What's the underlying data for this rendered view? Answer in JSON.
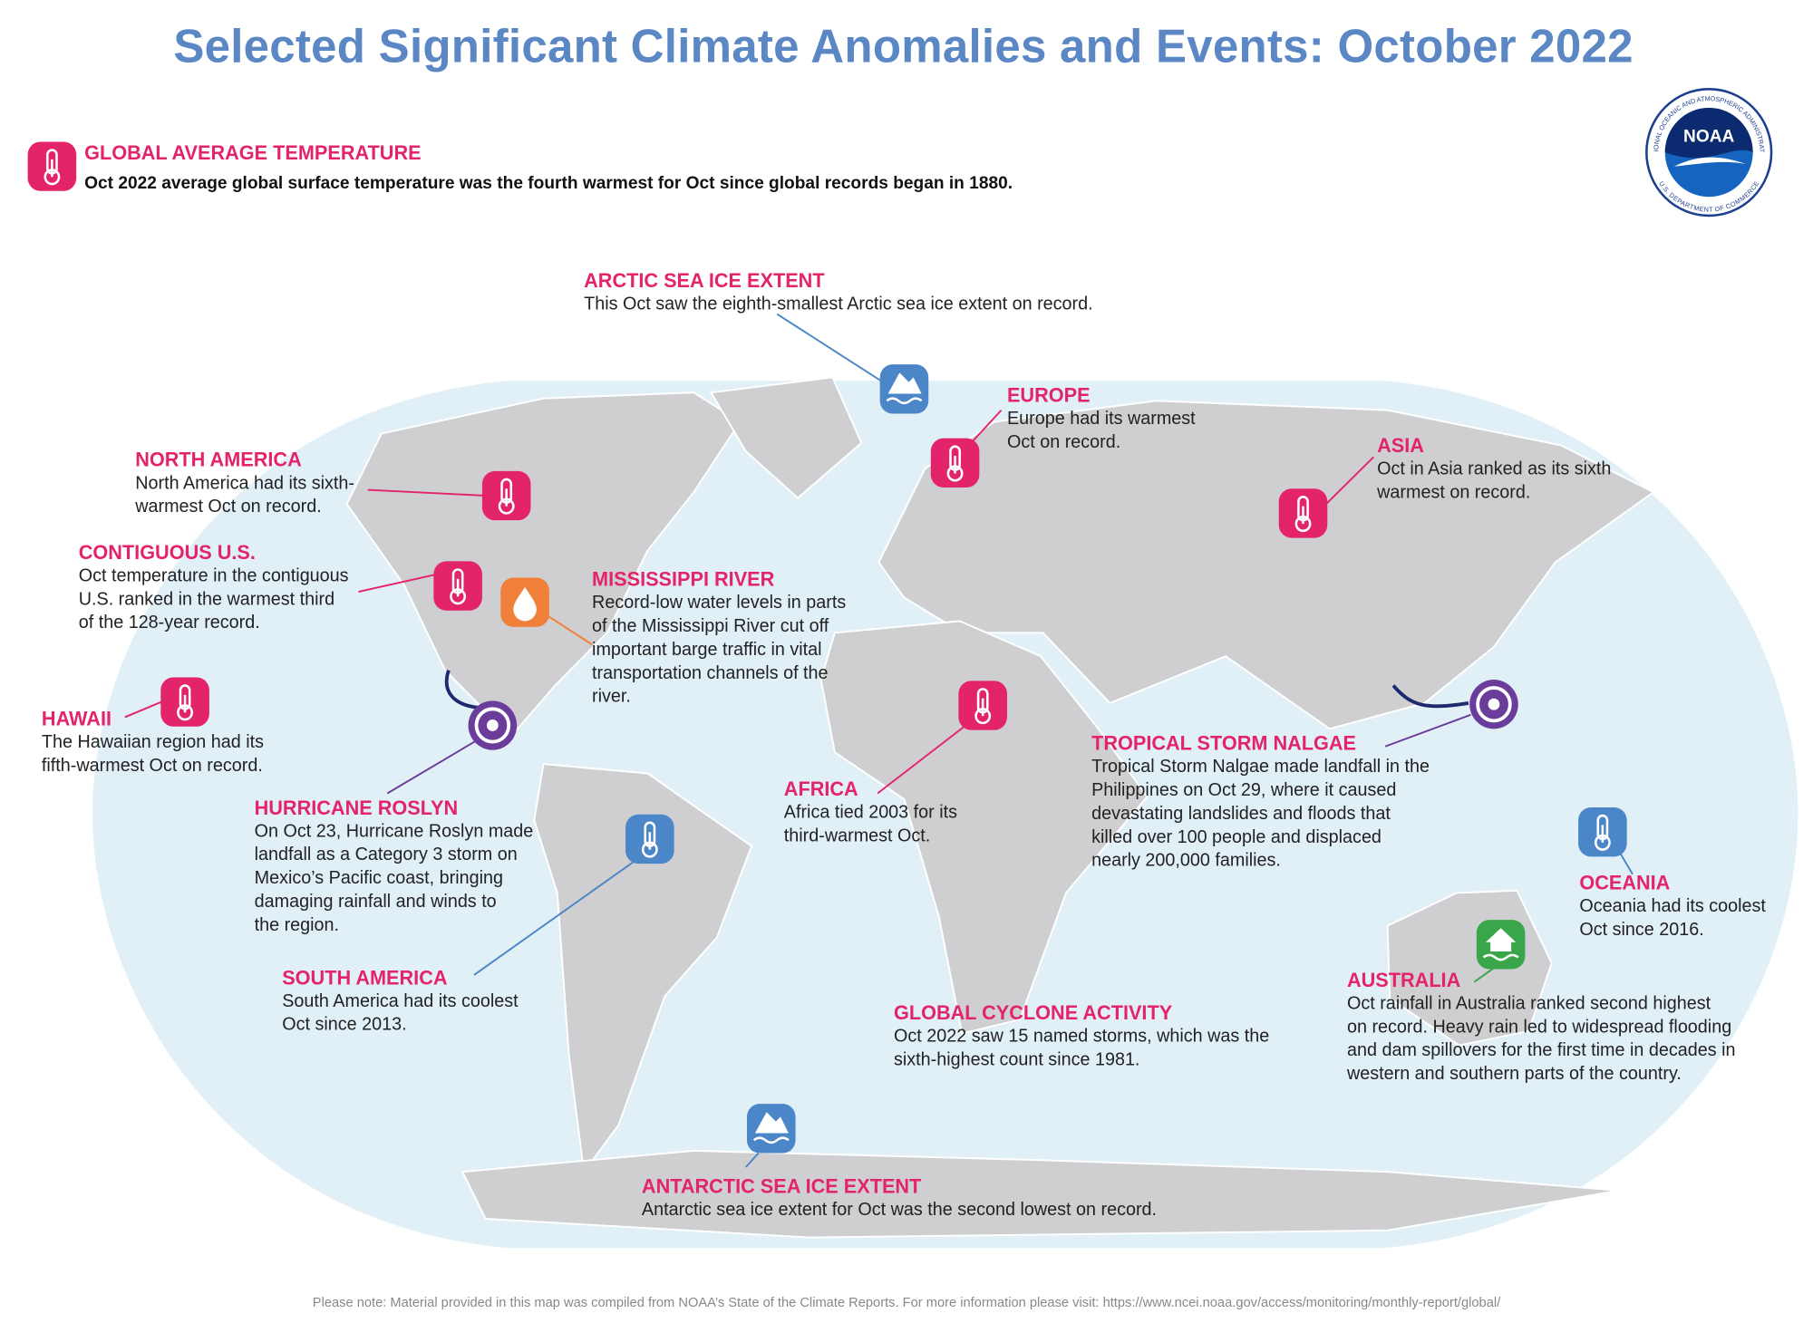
{
  "header": {
    "title": "Selected Significant Climate Anomalies and Events: October 2022",
    "global_temperature": {
      "heading": "GLOBAL AVERAGE TEMPERATURE",
      "text": "Oct 2022 average global surface temperature was the fourth warmest for Oct since global records began in 1880."
    }
  },
  "logo": {
    "abbr": "NOAA",
    "ring_top": "NATIONAL OCEANIC AND ATMOSPHERIC ADMINISTRATION",
    "ring_bottom": "U.S. DEPARTMENT OF COMMERCE"
  },
  "events": [
    {
      "title": "ARCTIC SEA ICE EXTENT",
      "lines": [
        "This Oct saw the eighth-smallest Arctic sea ice extent on record."
      ]
    },
    {
      "title": "EUROPE",
      "lines": [
        "Europe had its warmest",
        "Oct on record."
      ]
    },
    {
      "title": "NORTH AMERICA",
      "lines": [
        "North America had its sixth-",
        "warmest Oct on record."
      ]
    },
    {
      "title": "ASIA",
      "lines": [
        "Oct in Asia ranked as its sixth",
        "warmest on record."
      ]
    },
    {
      "title": "CONTIGUOUS U.S.",
      "lines": [
        "Oct temperature in the contiguous",
        "U.S. ranked in the warmest third",
        "of the 128-year record."
      ]
    },
    {
      "title": "MISSISSIPPI RIVER",
      "lines": [
        "Record-low water levels in parts",
        "of the Mississippi River cut off",
        "important barge traffic in vital",
        "transportation channels of the",
        "river."
      ]
    },
    {
      "title": "HAWAII",
      "lines": [
        "The Hawaiian region had its",
        "fifth-warmest Oct on record."
      ]
    },
    {
      "title": "TROPICAL STORM NALGAE",
      "lines": [
        "Tropical Storm Nalgae made landfall in the",
        "Philippines on Oct 29, where it caused",
        "devastating landslides and floods that",
        "killed over 100 people and displaced",
        "nearly 200,000 families."
      ]
    },
    {
      "title": "AFRICA",
      "lines": [
        "Africa tied 2003 for its",
        "third-warmest Oct."
      ]
    },
    {
      "title": "HURRICANE ROSLYN",
      "lines": [
        "On Oct 23, Hurricane Roslyn made",
        "landfall as a Category 3 storm on",
        "Mexico’s Pacific coast, bringing",
        "damaging rainfall and winds to",
        "the region."
      ]
    },
    {
      "title": "OCEANIA",
      "lines": [
        "Oceania had its coolest",
        "Oct since 2016."
      ]
    },
    {
      "title": "SOUTH AMERICA",
      "lines": [
        "South America had its coolest",
        "Oct since 2013."
      ]
    },
    {
      "title": "AUSTRALIA",
      "lines": [
        "Oct rainfall in Australia ranked second highest",
        "on record. Heavy rain led to widespread flooding",
        "and dam spillovers for the first time in decades in",
        "western and southern parts of the country."
      ]
    },
    {
      "title": "GLOBAL CYCLONE ACTIVITY",
      "lines": [
        "Oct 2022 saw 15 named storms, which was the",
        "sixth-highest count since 1981."
      ]
    },
    {
      "title": "ANTARCTIC SEA ICE EXTENT",
      "lines": [
        "Antarctic sea ice extent for Oct was the second lowest on record."
      ]
    }
  ],
  "footnote": "Please note: Material provided in this map was compiled from NOAA’s State of the Climate Reports. For more information please visit: https://www.ncei.noaa.gov/access/monitoring/monthly-report/global/"
}
